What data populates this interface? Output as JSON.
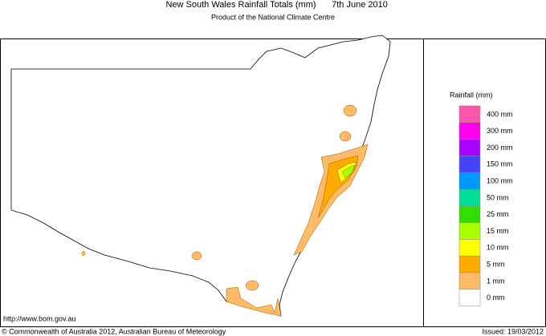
{
  "header": {
    "title": "New South Wales Rainfall Totals (mm)",
    "date": "7th June 2010",
    "subtitle": "Product of the National Climate Centre"
  },
  "legend": {
    "title": "Rainfall (mm)",
    "items": [
      {
        "label": "400 mm",
        "color": "#ff55aa"
      },
      {
        "label": "300 mm",
        "color": "#ff00ee"
      },
      {
        "label": "200 mm",
        "color": "#aa00ff"
      },
      {
        "label": "150 mm",
        "color": "#4444ff"
      },
      {
        "label": "100 mm",
        "color": "#0099ff"
      },
      {
        "label": "50 mm",
        "color": "#00dd99"
      },
      {
        "label": "25 mm",
        "color": "#33dd00"
      },
      {
        "label": "15 mm",
        "color": "#aaff00"
      },
      {
        "label": "10 mm",
        "color": "#ffff00"
      },
      {
        "label": "5 mm",
        "color": "#ffaa00"
      },
      {
        "label": "1 mm",
        "color": "#ffbb66"
      },
      {
        "label": "0 mm",
        "color": "#ffffff"
      }
    ]
  },
  "footer": {
    "url": "http://www.bom.gov.au",
    "copyright": "© Commonwealth of Australia 2012, Australian Bureau of Meteorology",
    "issued": "Issued: 19/03/2012"
  }
}
